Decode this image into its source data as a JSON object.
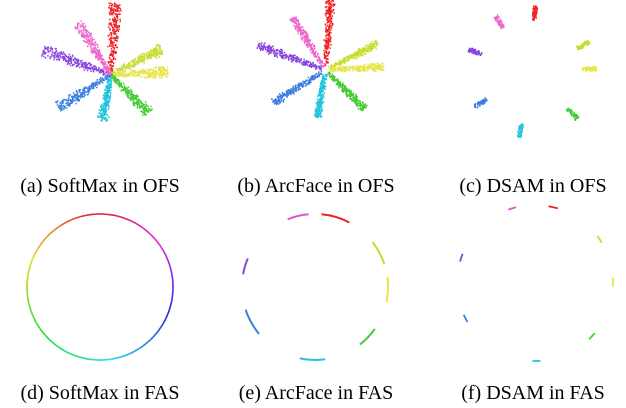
{
  "panels": [
    {
      "caption": "(a) SoftMax in OFS"
    },
    {
      "caption": "(b) ArcFace in OFS"
    },
    {
      "caption": "(c) DSAM in OFS"
    },
    {
      "caption": "(d) SoftMax in FAS"
    },
    {
      "caption": "(e) ArcFace in FAS"
    },
    {
      "caption": "(f) DSAM in FAS"
    }
  ]
}
